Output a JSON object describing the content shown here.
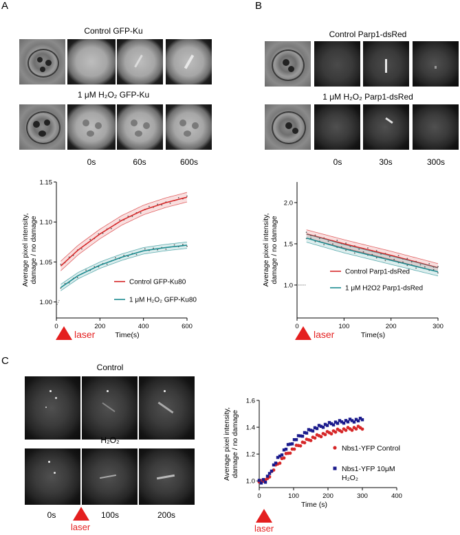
{
  "panels": {
    "A": {
      "letter": "A",
      "row1_title": "Control  GFP-Ku",
      "row2_title": "1 μM H₂O₂ GFP-Ku",
      "times": [
        "0s",
        "60s",
        "600s"
      ]
    },
    "B": {
      "letter": "B",
      "row1_title": "Control  Parp1-dsRed",
      "row2_title": "1 μM H₂O₂ Parp1-dsRed",
      "times": [
        "0s",
        "30s",
        "300s"
      ]
    },
    "C": {
      "letter": "C",
      "row1_title": "Control",
      "row2_title": "H₂O₂",
      "times": [
        "0s",
        "100s",
        "200s"
      ]
    }
  },
  "laser_label": "laser",
  "colors": {
    "red": "#d62728",
    "teal": "#1b8a8f",
    "navy": "#1a1a8c",
    "laser": "#e41f1f"
  },
  "chart_data": [
    {
      "id": "A",
      "type": "line",
      "xlabel": "Time(s)",
      "ylabel": "Average pixel intensity,\ndamage / no damage",
      "xlim": [
        0,
        600
      ],
      "ylim": [
        0.98,
        1.15
      ],
      "xticks": [
        0,
        200,
        400,
        600
      ],
      "yticks": [
        1.0,
        1.05,
        1.1,
        1.15
      ],
      "ytick_labels": [
        "1.00",
        "1.05",
        "1.10",
        "1.15"
      ],
      "legend_position": "lower-right",
      "series": [
        {
          "name": "Control GFP-Ku80",
          "x": [
            20,
            100,
            200,
            300,
            400,
            500,
            600
          ],
          "y": [
            1.045,
            1.065,
            1.085,
            1.102,
            1.115,
            1.124,
            1.131
          ],
          "band": 0.006
        },
        {
          "name": "1 μM H₂O₂ GFP-Ku80",
          "x": [
            20,
            100,
            200,
            300,
            400,
            500,
            600
          ],
          "y": [
            1.018,
            1.033,
            1.046,
            1.056,
            1.064,
            1.068,
            1.071
          ],
          "band": 0.004
        }
      ]
    },
    {
      "id": "B",
      "type": "line",
      "xlabel": "Time(s)",
      "ylabel": "Average pixel intensity,\ndamage / no damage",
      "xlim": [
        0,
        300
      ],
      "ylim": [
        0.6,
        2.25
      ],
      "xticks": [
        0,
        100,
        200,
        300
      ],
      "yticks": [
        1.0,
        1.5,
        2.0
      ],
      "ytick_labels": [
        "1.0",
        "1.5",
        "2.0"
      ],
      "legend_position": "lower-right",
      "series": [
        {
          "name": "Control Parp1-dsRed",
          "x": [
            20,
            100,
            200,
            300
          ],
          "y": [
            1.62,
            1.5,
            1.36,
            1.21
          ],
          "band": 0.05
        },
        {
          "name": "1 μM H2O2 Parp1-dsRed",
          "x": [
            20,
            100,
            200,
            300
          ],
          "y": [
            1.57,
            1.44,
            1.3,
            1.16
          ],
          "band": 0.05
        }
      ]
    },
    {
      "id": "C",
      "type": "scatter",
      "xlabel": "Time (s)",
      "ylabel": "Average pixel intensity,\ndamage / no damage",
      "xlim": [
        0,
        400
      ],
      "ylim": [
        0.95,
        1.6
      ],
      "xticks": [
        0,
        100,
        200,
        300,
        400
      ],
      "yticks": [
        1.0,
        1.2,
        1.4,
        1.6
      ],
      "ytick_labels": [
        "1.0",
        "1.2",
        "1.4",
        "1.6"
      ],
      "legend_position": "right",
      "series": [
        {
          "name": "Nbs1-YFP Control",
          "marker": "circle",
          "plateau": 1.42,
          "rate": 0.0105
        },
        {
          "name": "Nbs1-YFP 10μM H₂O₂",
          "marker": "square",
          "plateau": 1.47,
          "rate": 0.0125
        }
      ]
    }
  ]
}
